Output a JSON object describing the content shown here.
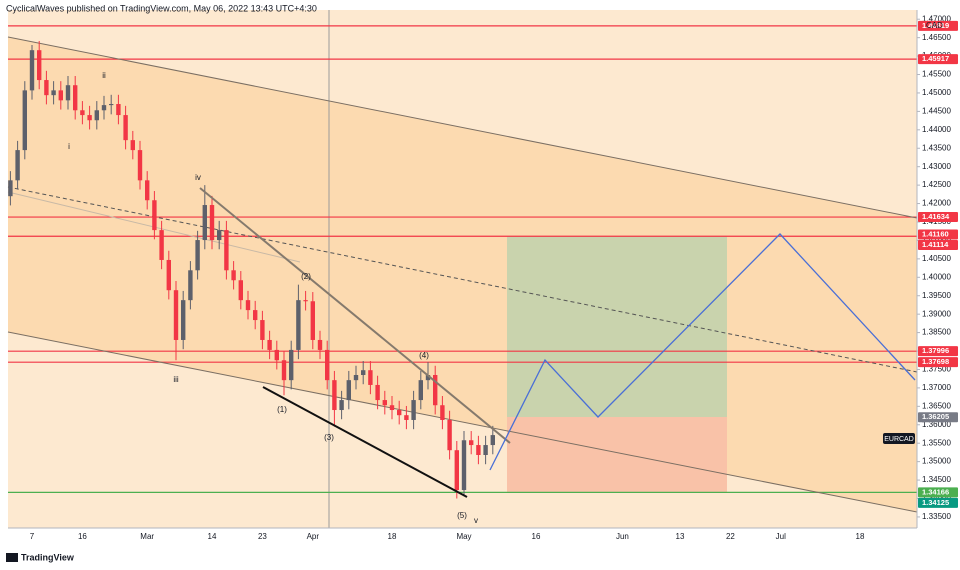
{
  "chart_data": {
    "type": "candlestick",
    "title": "CyclicalWaves published on TradingView.com, May 06, 2022 13:43 UTC+4:30",
    "symbol": "EURCAD",
    "currency": "CAD",
    "brand": "TradingView",
    "up_color": "#5d606b",
    "down_color": "#f23645",
    "categories": [
      null,
      null,
      null,
      "7",
      null,
      null,
      null,
      null,
      null,
      null,
      "16",
      null,
      null,
      null,
      null,
      null,
      null,
      null,
      null,
      "Mar",
      null,
      null,
      null,
      null,
      null,
      null,
      null,
      null,
      "14",
      null,
      null,
      null,
      null,
      null,
      null,
      "23",
      null,
      null,
      null,
      null,
      null,
      null,
      "Apr",
      null,
      null,
      null,
      null,
      null,
      null,
      null,
      null,
      null,
      null,
      "18",
      null,
      null,
      null,
      null,
      null,
      null,
      null,
      null,
      null,
      "May",
      null,
      null,
      null,
      null,
      null,
      null,
      null,
      null,
      null,
      "16",
      null,
      null,
      null,
      null,
      null,
      null,
      null,
      null,
      null,
      null,
      null,
      "Jun",
      null,
      null,
      null,
      null,
      null,
      null,
      null,
      "13",
      null,
      null,
      null,
      null,
      null,
      null,
      "22",
      null,
      null,
      null,
      null,
      null,
      null,
      "Jul",
      null,
      null,
      null,
      null,
      null,
      null,
      null,
      null,
      null,
      null,
      "18",
      null,
      null,
      null,
      null,
      null,
      null,
      null
    ],
    "ohlc": [
      [
        1.422,
        1.4288,
        1.4195,
        1.4263
      ],
      [
        1.4263,
        1.437,
        1.4238,
        1.4345
      ],
      [
        1.4345,
        1.4532,
        1.432,
        1.4507
      ],
      [
        1.4507,
        1.463,
        1.4482,
        1.4616
      ],
      [
        1.4616,
        1.4641,
        1.451,
        1.4535
      ],
      [
        1.4535,
        1.456,
        1.4469,
        1.4494
      ],
      [
        1.4494,
        1.4532,
        1.4469,
        1.4507
      ],
      [
        1.4507,
        1.4532,
        1.4455,
        1.448
      ],
      [
        1.448,
        1.4546,
        1.4455,
        1.4521
      ],
      [
        1.4521,
        1.4546,
        1.4428,
        1.4453
      ],
      [
        1.4453,
        1.4478,
        1.4415,
        1.444
      ],
      [
        1.444,
        1.4465,
        1.4401,
        1.4426
      ],
      [
        1.4426,
        1.4478,
        1.4401,
        1.4453
      ],
      [
        1.4453,
        1.4492,
        1.4428,
        1.4467
      ],
      [
        1.4467,
        1.4495,
        1.4442,
        1.447
      ],
      [
        1.447,
        1.4495,
        1.4415,
        1.444
      ],
      [
        1.444,
        1.4465,
        1.4347,
        1.4372
      ],
      [
        1.4372,
        1.4397,
        1.432,
        1.4345
      ],
      [
        1.4345,
        1.437,
        1.4238,
        1.4263
      ],
      [
        1.4263,
        1.4288,
        1.4184,
        1.4209
      ],
      [
        1.4209,
        1.4234,
        1.4103,
        1.4128
      ],
      [
        1.4128,
        1.4153,
        1.4022,
        1.4047
      ],
      [
        1.4047,
        1.4072,
        1.394,
        1.3965
      ],
      [
        1.3965,
        1.399,
        1.3775,
        1.383
      ],
      [
        1.383,
        1.3963,
        1.3805,
        1.3938
      ],
      [
        1.3938,
        1.4044,
        1.3913,
        1.4019
      ],
      [
        1.4019,
        1.4126,
        1.3994,
        1.4101
      ],
      [
        1.4101,
        1.425,
        1.4076,
        1.4196
      ],
      [
        1.4196,
        1.4221,
        1.4076,
        1.4101
      ],
      [
        1.4101,
        1.4153,
        1.4076,
        1.4128
      ],
      [
        1.4128,
        1.4153,
        1.3994,
        1.4019
      ],
      [
        1.4019,
        1.4044,
        1.3967,
        1.3992
      ],
      [
        1.3992,
        1.4017,
        1.3913,
        1.3938
      ],
      [
        1.3938,
        1.3963,
        1.3886,
        1.3911
      ],
      [
        1.3911,
        1.3936,
        1.3859,
        1.3884
      ],
      [
        1.3884,
        1.3909,
        1.3805,
        1.383
      ],
      [
        1.383,
        1.3855,
        1.3778,
        1.3803
      ],
      [
        1.3803,
        1.3828,
        1.375,
        1.3775
      ],
      [
        1.3775,
        1.38,
        1.368,
        1.3721
      ],
      [
        1.3721,
        1.3828,
        1.3696,
        1.3803
      ],
      [
        1.3803,
        1.398,
        1.3778,
        1.3938
      ],
      [
        1.3938,
        1.3963,
        1.391,
        1.3935
      ],
      [
        1.3935,
        1.396,
        1.3805,
        1.383
      ],
      [
        1.383,
        1.3855,
        1.3778,
        1.3803
      ],
      [
        1.3803,
        1.3828,
        1.3696,
        1.3721
      ],
      [
        1.3721,
        1.3746,
        1.3595,
        1.364
      ],
      [
        1.364,
        1.3692,
        1.3615,
        1.3667
      ],
      [
        1.3667,
        1.3746,
        1.3642,
        1.3721
      ],
      [
        1.3721,
        1.376,
        1.3696,
        1.3735
      ],
      [
        1.3735,
        1.3773,
        1.371,
        1.3748
      ],
      [
        1.3748,
        1.3773,
        1.3683,
        1.3708
      ],
      [
        1.3708,
        1.3733,
        1.3642,
        1.3667
      ],
      [
        1.3667,
        1.3692,
        1.3628,
        1.3653
      ],
      [
        1.3653,
        1.3678,
        1.3615,
        1.364
      ],
      [
        1.364,
        1.3665,
        1.3601,
        1.3626
      ],
      [
        1.3626,
        1.3651,
        1.3588,
        1.3613
      ],
      [
        1.3613,
        1.3692,
        1.3588,
        1.3667
      ],
      [
        1.3667,
        1.3746,
        1.3642,
        1.3721
      ],
      [
        1.3721,
        1.377,
        1.3696,
        1.3735
      ],
      [
        1.3735,
        1.376,
        1.3628,
        1.3653
      ],
      [
        1.3653,
        1.3678,
        1.3588,
        1.3613
      ],
      [
        1.3613,
        1.3638,
        1.3506,
        1.3531
      ],
      [
        1.3531,
        1.3556,
        1.34,
        1.3423
      ],
      [
        1.3423,
        1.3583,
        1.341,
        1.3558
      ],
      [
        1.3558,
        1.3583,
        1.352,
        1.3545
      ],
      [
        1.3545,
        1.357,
        1.3493,
        1.3518
      ],
      [
        1.3518,
        1.357,
        1.3493,
        1.3545
      ],
      [
        1.3545,
        1.3597,
        1.352,
        1.3572
      ],
      null,
      null,
      null,
      null,
      null,
      null,
      null,
      null,
      null,
      null,
      null,
      null,
      null,
      null,
      null,
      null,
      null,
      null,
      null,
      null,
      null,
      null,
      null,
      null,
      null,
      null,
      null,
      null,
      null,
      null,
      null,
      null,
      null,
      null,
      null,
      null,
      null,
      null,
      null,
      null,
      null,
      null,
      null,
      null,
      null,
      null,
      null,
      null,
      null,
      null,
      null,
      null,
      null,
      null,
      null,
      null,
      null,
      null
    ],
    "ylim": [
      1.332,
      1.4725
    ],
    "yticks": [
      {
        "value": 1.335,
        "label": "1.33500"
      },
      {
        "value": 1.34,
        "label": "1.34000"
      },
      {
        "value": 1.345,
        "label": "1.34500"
      },
      {
        "value": 1.35,
        "label": "1.35000"
      },
      {
        "value": 1.355,
        "label": "1.35500"
      },
      {
        "value": 1.36,
        "label": "1.36000"
      },
      {
        "value": 1.365,
        "label": "1.36500"
      },
      {
        "value": 1.37,
        "label": "1.37000"
      },
      {
        "value": 1.375,
        "label": "1.37500"
      },
      {
        "value": 1.38,
        "label": "1.38000"
      },
      {
        "value": 1.385,
        "label": "1.38500"
      },
      {
        "value": 1.39,
        "label": "1.39000"
      },
      {
        "value": 1.395,
        "label": "1.39500"
      },
      {
        "value": 1.4,
        "label": "1.40000"
      },
      {
        "value": 1.405,
        "label": "1.40500"
      },
      {
        "value": 1.41,
        "label": "1.41000"
      },
      {
        "value": 1.415,
        "label": "1.41500"
      },
      {
        "value": 1.42,
        "label": "1.42000"
      },
      {
        "value": 1.425,
        "label": "1.42500"
      },
      {
        "value": 1.43,
        "label": "1.43000"
      },
      {
        "value": 1.435,
        "label": "1.43500"
      },
      {
        "value": 1.44,
        "label": "1.44000"
      },
      {
        "value": 1.445,
        "label": "1.44500"
      },
      {
        "value": 1.45,
        "label": "1.45000"
      },
      {
        "value": 1.455,
        "label": "1.45500"
      },
      {
        "value": 1.46,
        "label": "1.46000"
      },
      {
        "value": 1.465,
        "label": "1.46500"
      },
      {
        "value": 1.47,
        "label": "1.47000"
      }
    ],
    "levels": [
      {
        "value": 1.46819,
        "label": "1.46819",
        "color": "#f23645",
        "line": true
      },
      {
        "value": 1.45917,
        "label": "1.45917",
        "color": "#f23645",
        "line": true
      },
      {
        "value": 1.41634,
        "label": "1.41634",
        "color": "#f23645",
        "line": true
      },
      {
        "value": 1.4116,
        "label": "1.41160",
        "color": "#f23645",
        "line": false
      },
      {
        "value": 1.41114,
        "label": "1.41114",
        "color": "#f23645",
        "line": true
      },
      {
        "value": 1.37996,
        "label": "1.37996",
        "color": "#f23645",
        "line": true
      },
      {
        "value": 1.37698,
        "label": "1.37698",
        "color": "#f23645",
        "line": true
      },
      {
        "value": 1.36205,
        "label": "1.36205",
        "color": "#787b86",
        "line": false
      },
      {
        "value": 1.34166,
        "label": "1.34166",
        "color": "#4caf50",
        "line": true
      },
      {
        "value": 1.34125,
        "label": "1.34125",
        "color": "#089981",
        "line": false
      }
    ],
    "annotations": [
      "ii",
      "i",
      "iv",
      "iii",
      "(1)",
      "(2)",
      "(3)",
      "(4)",
      "(5)",
      "v"
    ]
  }
}
